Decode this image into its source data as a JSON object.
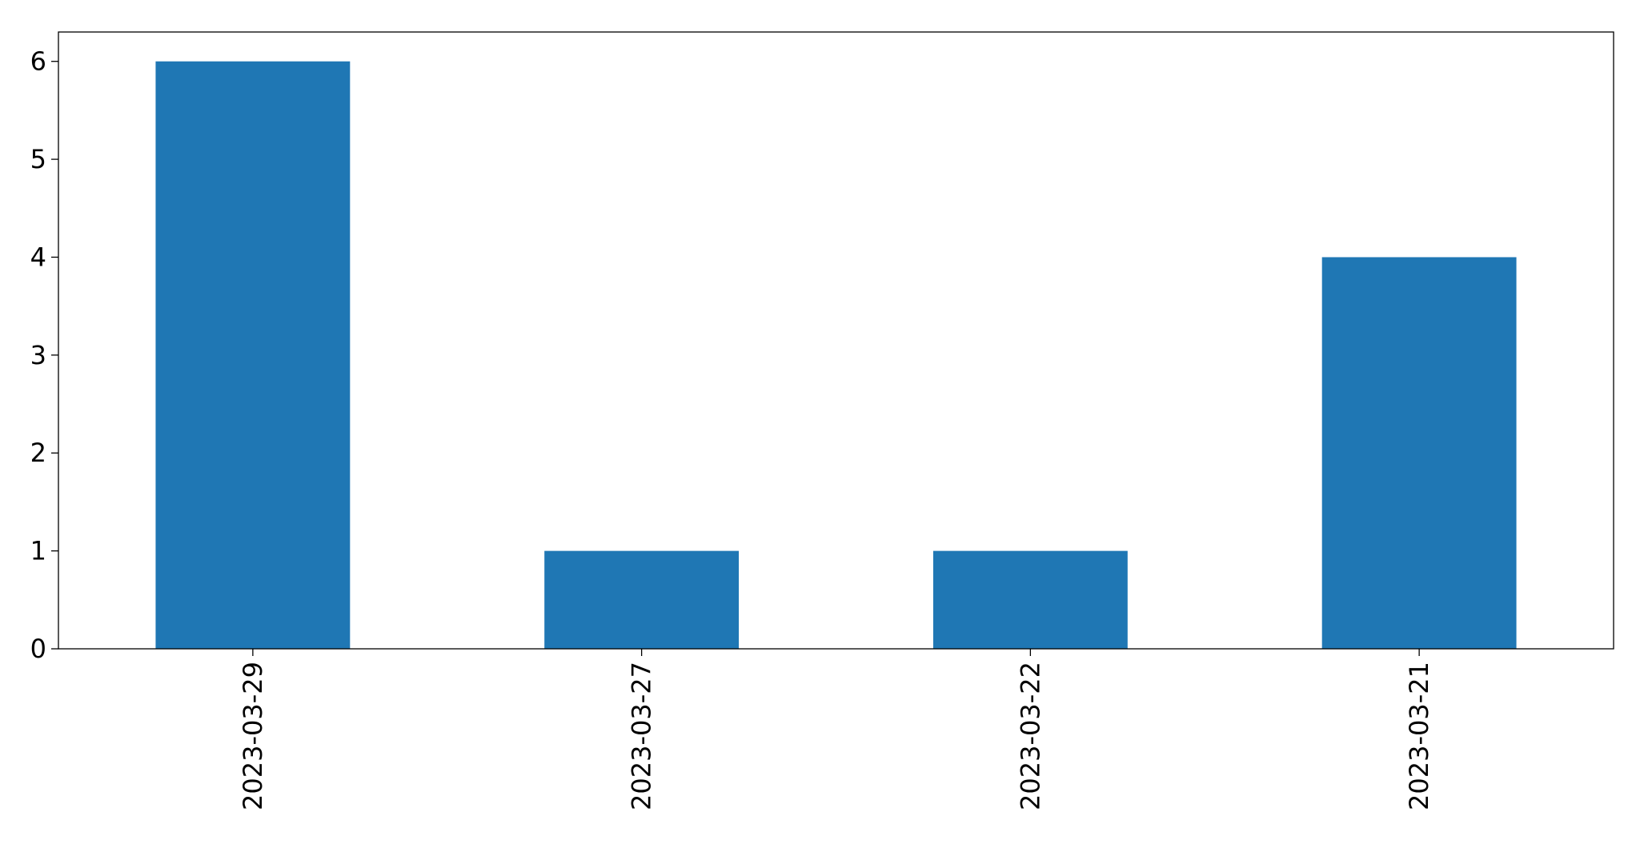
{
  "chart_data": {
    "type": "bar",
    "title": "",
    "xlabel": "",
    "ylabel": "",
    "categories": [
      "2023-03-29",
      "2023-03-27",
      "2023-03-22",
      "2023-03-21"
    ],
    "values": [
      6,
      1,
      1,
      4
    ],
    "ylim": [
      0,
      6.3
    ],
    "yticks": [
      0,
      1,
      2,
      3,
      4,
      5,
      6
    ],
    "grid": false,
    "legend": "none",
    "bar_color": "#1f77b4",
    "x_tick_rotation": "vertical"
  }
}
